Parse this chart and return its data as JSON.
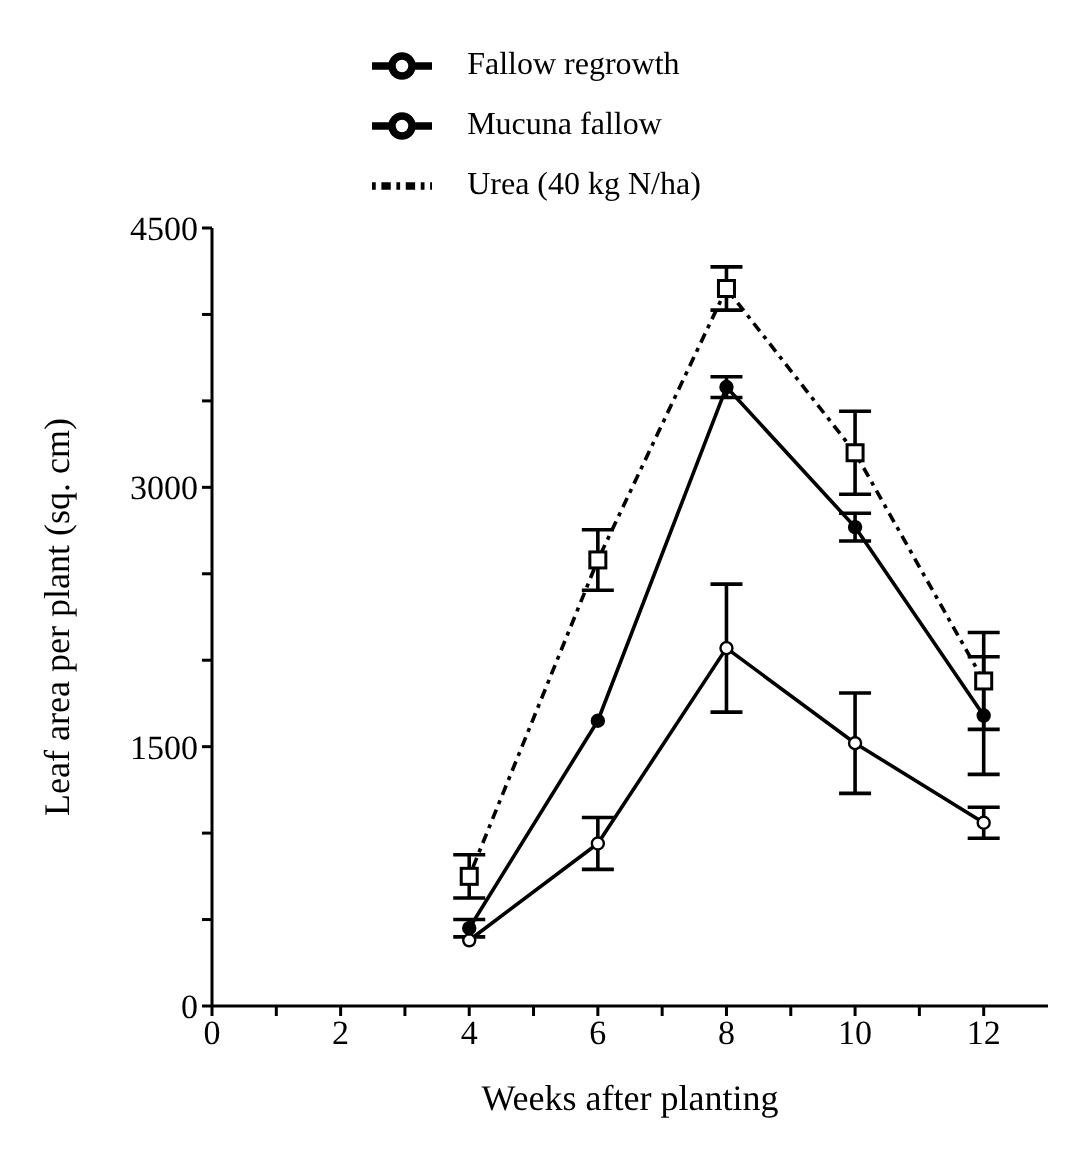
{
  "chart_data": {
    "type": "line",
    "xlabel": "Weeks after planting",
    "ylabel": "Leaf area per plant (sq. cm)",
    "x": [
      4,
      6,
      8,
      10,
      12
    ],
    "series": [
      {
        "name": "Fallow regrowth",
        "color": "#000000",
        "marker": "circle",
        "line_style": "solid",
        "values": [
          380,
          940,
          2070,
          1520,
          1060
        ],
        "errors": [
          null,
          150,
          370,
          290,
          90
        ]
      },
      {
        "name": "Mucuna fallow",
        "color": "#000000",
        "marker": "circle",
        "line_style": "solid",
        "values": [
          450,
          1650,
          3580,
          2770,
          1680
        ],
        "errors": [
          50,
          null,
          60,
          80,
          340
        ]
      },
      {
        "name": "Urea (40 kg N/ha)",
        "color": "#000000",
        "marker": "square",
        "line_style": "dotted",
        "values": [
          750,
          2580,
          4150,
          3200,
          1880
        ],
        "errors": [
          125,
          175,
          125,
          240,
          280
        ]
      }
    ],
    "xlim": [
      0,
      13
    ],
    "xticks": [
      0,
      {
        "value": 1,
        "label": null
      },
      2,
      {
        "value": 3,
        "label": null
      },
      4,
      {
        "value": 5,
        "label": null
      },
      6,
      {
        "value": 7,
        "label": null
      },
      8,
      {
        "value": 9,
        "label": null
      },
      10,
      {
        "value": 11,
        "label": null
      },
      12
    ],
    "ylim": [
      0,
      4500
    ],
    "yticks": [
      0,
      {
        "value": 500,
        "label": null
      },
      {
        "value": 1000,
        "label": null
      },
      1500,
      {
        "value": 2000,
        "label": null
      },
      {
        "value": 2500,
        "label": null
      },
      3000,
      {
        "value": 3500,
        "label": null
      },
      {
        "value": 4000,
        "label": null
      },
      4500
    ],
    "grid": false,
    "legend": "top"
  }
}
